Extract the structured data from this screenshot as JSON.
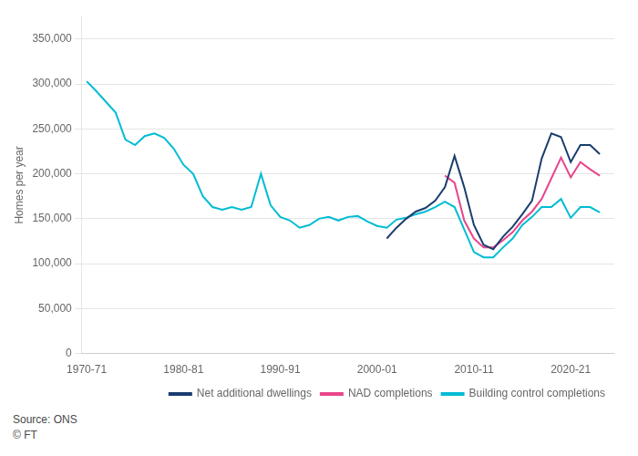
{
  "chart_data": {
    "type": "line",
    "y_label": "Homes per year",
    "annotations": [
      "Source: ONS",
      "© FT"
    ],
    "xlim": [
      1969.5,
      2024.5
    ],
    "xticks": [
      {
        "value": 1970,
        "label": "1970-71"
      },
      {
        "value": 1980,
        "label": "1980-81"
      },
      {
        "value": 1990,
        "label": "1990-91"
      },
      {
        "value": 2000,
        "label": "2000-01"
      },
      {
        "value": 2010,
        "label": "2010-11"
      },
      {
        "value": 2020,
        "label": "2020-21"
      }
    ],
    "ylim": [
      0,
      375000
    ],
    "yticks": [
      0,
      {
        "value": 50000,
        "label": "50,000"
      },
      {
        "value": 100000,
        "label": "100,000"
      },
      {
        "value": 150000,
        "label": "150,000"
      },
      {
        "value": 200000,
        "label": "200,000"
      },
      {
        "value": 250000,
        "label": "250,000"
      },
      {
        "value": 300000,
        "label": "300,000"
      },
      {
        "value": 350000,
        "label": "350,000"
      }
    ],
    "grid": "y",
    "legend": "lower right",
    "series": [
      {
        "name": "Net additional dwellings",
        "color": "#1a3d6e",
        "x": [
          2001,
          2002,
          2003,
          2004,
          2005,
          2006,
          2007,
          2008,
          2009,
          2010,
          2011,
          2012,
          2013,
          2014,
          2015,
          2016,
          2017,
          2018,
          2019,
          2020,
          2021,
          2022,
          2023
        ],
        "values": [
          128000,
          140000,
          150000,
          158000,
          162000,
          170000,
          185000,
          220000,
          185000,
          143000,
          121000,
          116000,
          130000,
          141000,
          155000,
          170000,
          217000,
          245000,
          241000,
          213000,
          232000,
          232000,
          222000
        ]
      },
      {
        "name": "NAD completions",
        "color": "#e8458c",
        "x": [
          2007,
          2008,
          2009,
          2010,
          2011,
          2012,
          2013,
          2014,
          2015,
          2016,
          2017,
          2018,
          2019,
          2020,
          2021,
          2022,
          2023
        ],
        "values": [
          198000,
          190000,
          148000,
          128000,
          118000,
          118000,
          126000,
          135000,
          148000,
          158000,
          172000,
          195000,
          218000,
          196000,
          213000,
          205000,
          198000
        ]
      },
      {
        "name": "Building control completions",
        "color": "#00bcd4",
        "x": [
          1970,
          1971,
          1972,
          1973,
          1974,
          1975,
          1976,
          1977,
          1978,
          1979,
          1980,
          1981,
          1982,
          1983,
          1984,
          1985,
          1986,
          1987,
          1988,
          1989,
          1990,
          1991,
          1992,
          1993,
          1994,
          1995,
          1996,
          1997,
          1998,
          1999,
          2000,
          2001,
          2002,
          2003,
          2004,
          2005,
          2006,
          2007,
          2008,
          2009,
          2010,
          2011,
          2012,
          2013,
          2014,
          2015,
          2016,
          2017,
          2018,
          2019,
          2020,
          2021,
          2022,
          2023
        ],
        "values": [
          303000,
          292000,
          280000,
          268000,
          238000,
          232000,
          242000,
          245000,
          240000,
          228000,
          210000,
          200000,
          175000,
          163000,
          160000,
          163000,
          160000,
          163000,
          200000,
          165000,
          152000,
          148000,
          140000,
          143000,
          150000,
          152000,
          148000,
          152000,
          153000,
          147000,
          142000,
          140000,
          149000,
          151000,
          155000,
          158000,
          163000,
          169000,
          163000,
          138000,
          113000,
          107000,
          107000,
          118000,
          128000,
          143000,
          152000,
          163000,
          163000,
          172000,
          151000,
          163000,
          163000,
          157000
        ]
      }
    ]
  }
}
